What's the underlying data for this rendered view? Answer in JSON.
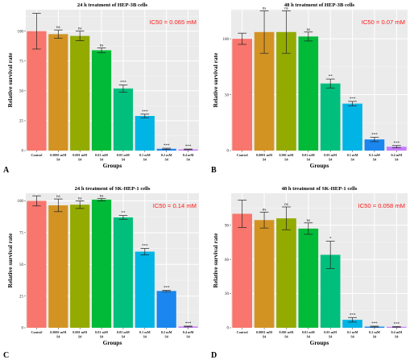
{
  "colors": [
    "#f8766d",
    "#d39323",
    "#93aa00",
    "#00ba38",
    "#00bf7d",
    "#00b4e6",
    "#1a86ee",
    "#c77cff",
    "#f064e8"
  ],
  "chart_data": [
    {
      "panel": "A",
      "type": "bar",
      "title": "24 h treatment of HEP-3B cells",
      "xlabel": "Groups",
      "ylabel": "Relative survival rate",
      "annotation": "IC50 = 0.065 mM",
      "ylim": [
        0,
        118
      ],
      "yticks": [
        0,
        25,
        50,
        75,
        100
      ],
      "grid": true,
      "categories": [
        {
          "line1": "Control",
          "line2": ""
        },
        {
          "line1": "0.0001 mM",
          "line2": "S4"
        },
        {
          "line1": "0.001 mM",
          "line2": "S4"
        },
        {
          "line1": "0.01 mM",
          "line2": "S4"
        },
        {
          "line1": "0.05 mM",
          "line2": "S4"
        },
        {
          "line1": "0.1 mM",
          "line2": "S4"
        },
        {
          "line1": "0.2 mM",
          "line2": "S4"
        },
        {
          "line1": "0.4 mM",
          "line2": "S4"
        }
      ],
      "values": [
        100,
        97.5,
        96,
        84,
        52,
        29,
        1.5,
        1
      ],
      "errors": [
        15,
        3.5,
        4,
        2,
        3,
        1.5,
        0.5,
        0.3
      ],
      "significance": [
        "",
        "ns",
        "ns",
        "ns",
        "***",
        "***",
        "***",
        "***"
      ]
    },
    {
      "panel": "B",
      "type": "bar",
      "title": "48 h treatment of HEP-3B cells",
      "xlabel": "Groups",
      "ylabel": "Relative survival rate",
      "annotation": "IC50 = 0.07 mM",
      "ylim": [
        0,
        126
      ],
      "yticks": [
        0,
        50,
        100
      ],
      "grid": true,
      "categories": [
        {
          "line1": "Control",
          "line2": ""
        },
        {
          "line1": "0.0001 mM",
          "line2": "S4"
        },
        {
          "line1": "0.001 mM",
          "line2": "S4"
        },
        {
          "line1": "0.01 mM",
          "line2": "S4"
        },
        {
          "line1": "0.05 mM",
          "line2": "S4"
        },
        {
          "line1": "0.1 mM",
          "line2": "S4"
        },
        {
          "line1": "0.2 mM",
          "line2": "S4"
        },
        {
          "line1": "0.4 mM",
          "line2": "S4"
        }
      ],
      "values": [
        100,
        106,
        106,
        102,
        60,
        42,
        10,
        3.5
      ],
      "errors": [
        5,
        19,
        19,
        4,
        4,
        2,
        2,
        1
      ],
      "significance": [
        "",
        "ns",
        "ns",
        "ns",
        "**",
        "***",
        "***",
        "***"
      ]
    },
    {
      "panel": "C",
      "type": "bar",
      "title": "24 h treatment of SK-HEP-1 cells",
      "xlabel": "Groups",
      "ylabel": "Relative survival rate",
      "annotation": "IC50 = 0.14 mM",
      "ylim": [
        0,
        106
      ],
      "yticks": [
        0,
        25,
        50,
        75,
        100
      ],
      "grid": true,
      "categories": [
        {
          "line1": "Control",
          "line2": ""
        },
        {
          "line1": "0.0001 mM",
          "line2": "S4"
        },
        {
          "line1": "0.001 mM",
          "line2": "S4"
        },
        {
          "line1": "0.01 mM",
          "line2": "S4"
        },
        {
          "line1": "0.05 mM",
          "line2": "S4"
        },
        {
          "line1": "0.1 mM",
          "line2": "S4"
        },
        {
          "line1": "0.2 mM",
          "line2": "S4"
        },
        {
          "line1": "0.4 mM",
          "line2": "S4"
        }
      ],
      "values": [
        100,
        96.5,
        97,
        101,
        87,
        60,
        29,
        1
      ],
      "errors": [
        4,
        5,
        3,
        1,
        1.5,
        2.5,
        0.5,
        0.3
      ],
      "significance": [
        "",
        "ns",
        "ns",
        "ns",
        "**",
        "***",
        "***",
        "***"
      ]
    },
    {
      "panel": "D",
      "type": "bar",
      "title": "48 h treatment of SK-HEP-1 cells",
      "xlabel": "Groups",
      "ylabel": "Relative survival rate",
      "annotation": "IC50 = 0.058 mM",
      "ylim": [
        0,
        118
      ],
      "yticks": [
        0,
        30,
        60,
        90
      ],
      "grid": true,
      "categories": [
        {
          "line1": "Control",
          "line2": ""
        },
        {
          "line1": "0.0001 mM",
          "line2": "S4"
        },
        {
          "line1": "0.001 mM",
          "line2": "S4"
        },
        {
          "line1": "0.01 mM",
          "line2": "S4"
        },
        {
          "line1": "0.05 mM",
          "line2": "S4"
        },
        {
          "line1": "0.1 mM",
          "line2": "S4"
        },
        {
          "line1": "0.2 mM",
          "line2": "S4"
        },
        {
          "line1": "0.4 mM",
          "line2": "S4"
        }
      ],
      "values": [
        100,
        94.5,
        96,
        87,
        64,
        7,
        1,
        0.8
      ],
      "errors": [
        12,
        7,
        10,
        5,
        12,
        2,
        0.4,
        0.3
      ],
      "significance": [
        "",
        "ns",
        "ns",
        "ns",
        "*",
        "***",
        "***",
        "***"
      ]
    }
  ]
}
